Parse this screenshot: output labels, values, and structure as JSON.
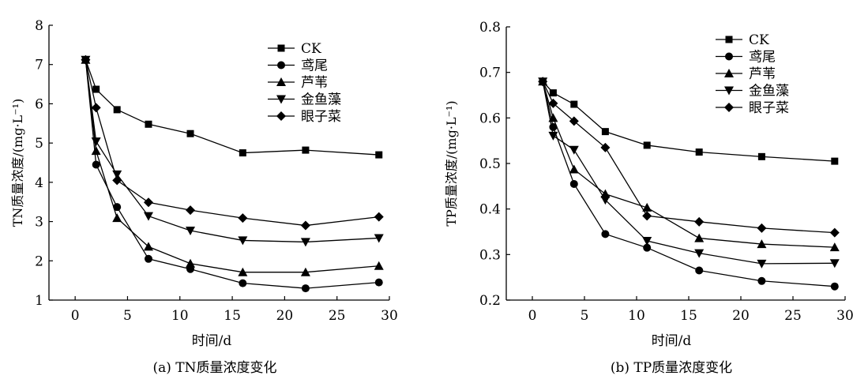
{
  "chart_data": [
    {
      "type": "line",
      "title": "",
      "caption": "(a) TN质量浓度变化",
      "xlabel": "时间/d",
      "ylabel": "TN质量浓度/(mg·L⁻¹)",
      "xlim": [
        -2.5,
        30
      ],
      "ylim": [
        1,
        8
      ],
      "xticks": [
        0,
        5,
        10,
        15,
        20,
        25,
        30
      ],
      "yticks": [
        1,
        2,
        3,
        4,
        5,
        6,
        7,
        8
      ],
      "legend_position": "top-right",
      "x": [
        1,
        2,
        4,
        7,
        11,
        16,
        22,
        29
      ],
      "series": [
        {
          "name": "CK",
          "marker": "square",
          "values": [
            7.12,
            6.37,
            5.85,
            5.48,
            5.24,
            4.75,
            4.82,
            4.7
          ]
        },
        {
          "name": "鸢尾",
          "marker": "circle",
          "values": [
            7.12,
            4.45,
            3.37,
            2.05,
            1.79,
            1.43,
            1.3,
            1.45
          ]
        },
        {
          "name": "芦苇",
          "marker": "triangle-up",
          "values": [
            7.12,
            4.8,
            3.09,
            2.36,
            1.93,
            1.71,
            1.71,
            1.87
          ]
        },
        {
          "name": "金鱼藻",
          "marker": "triangle-down",
          "values": [
            7.12,
            5.04,
            4.2,
            3.14,
            2.77,
            2.52,
            2.48,
            2.58
          ]
        },
        {
          "name": "眼子菜",
          "marker": "diamond",
          "values": [
            7.12,
            5.9,
            4.05,
            3.49,
            3.29,
            3.09,
            2.9,
            3.12
          ]
        }
      ]
    },
    {
      "type": "line",
      "title": "",
      "caption": "(b) TP质量浓度变化",
      "xlabel": "时间/d",
      "ylabel": "TP质量浓度/(mg·L⁻¹)",
      "xlim": [
        -2.5,
        30
      ],
      "ylim": [
        0.2,
        0.8
      ],
      "xticks": [
        0,
        5,
        10,
        15,
        20,
        25,
        30
      ],
      "yticks": [
        0.2,
        0.3,
        0.4,
        0.5,
        0.6,
        0.7,
        0.8
      ],
      "legend_position": "top-right",
      "x": [
        1,
        2,
        4,
        7,
        11,
        16,
        22,
        29
      ],
      "series": [
        {
          "name": "CK",
          "marker": "square",
          "values": [
            0.68,
            0.655,
            0.63,
            0.57,
            0.54,
            0.525,
            0.515,
            0.505
          ]
        },
        {
          "name": "鸢尾",
          "marker": "circle",
          "values": [
            0.68,
            0.58,
            0.455,
            0.345,
            0.315,
            0.265,
            0.242,
            0.23
          ]
        },
        {
          "name": "芦苇",
          "marker": "triangle-up",
          "values": [
            0.68,
            0.6,
            0.487,
            0.433,
            0.403,
            0.336,
            0.323,
            0.316
          ]
        },
        {
          "name": "金鱼藻",
          "marker": "triangle-down",
          "values": [
            0.68,
            0.561,
            0.53,
            0.42,
            0.33,
            0.303,
            0.28,
            0.281
          ]
        },
        {
          "name": "眼子菜",
          "marker": "diamond",
          "values": [
            0.68,
            0.632,
            0.593,
            0.535,
            0.385,
            0.372,
            0.358,
            0.348
          ]
        }
      ]
    }
  ]
}
